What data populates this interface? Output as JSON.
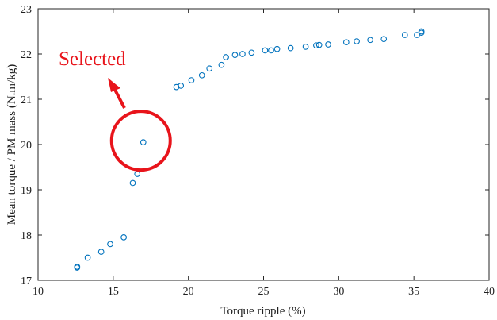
{
  "chart_data": {
    "type": "scatter",
    "xlabel": "Torque ripple (%)",
    "ylabel": "Mean torque / PM mass (N.m/kg)",
    "xlim": [
      10,
      40
    ],
    "ylim": [
      17,
      23
    ],
    "xticks": [
      10,
      15,
      20,
      25,
      30,
      35,
      40
    ],
    "yticks": [
      17,
      18,
      19,
      20,
      21,
      22,
      23
    ],
    "grid": false,
    "marker_color": "#0072bd",
    "series": [
      {
        "points": [
          [
            12.6,
            17.3
          ],
          [
            12.6,
            17.28
          ],
          [
            13.3,
            17.5
          ],
          [
            14.2,
            17.63
          ],
          [
            14.8,
            17.8
          ],
          [
            15.7,
            17.95
          ],
          [
            16.3,
            19.15
          ],
          [
            16.6,
            19.35
          ],
          [
            17.0,
            20.05
          ],
          [
            19.2,
            21.27
          ],
          [
            19.5,
            21.3
          ],
          [
            20.2,
            21.42
          ],
          [
            20.9,
            21.53
          ],
          [
            21.4,
            21.68
          ],
          [
            22.2,
            21.76
          ],
          [
            22.5,
            21.93
          ],
          [
            23.1,
            21.98
          ],
          [
            23.6,
            22.0
          ],
          [
            24.2,
            22.03
          ],
          [
            25.1,
            22.08
          ],
          [
            25.5,
            22.08
          ],
          [
            25.9,
            22.11
          ],
          [
            26.8,
            22.13
          ],
          [
            27.8,
            22.16
          ],
          [
            28.5,
            22.19
          ],
          [
            28.7,
            22.2
          ],
          [
            29.3,
            22.21
          ],
          [
            30.5,
            22.26
          ],
          [
            31.2,
            22.28
          ],
          [
            32.1,
            22.31
          ],
          [
            33.0,
            22.33
          ],
          [
            34.4,
            22.42
          ],
          [
            35.2,
            22.42
          ],
          [
            35.5,
            22.47
          ],
          [
            35.5,
            22.5
          ]
        ]
      }
    ],
    "annotation": {
      "text": "Selected",
      "color": "#e8141b",
      "circled_point": [
        17.0,
        20.05
      ]
    }
  }
}
